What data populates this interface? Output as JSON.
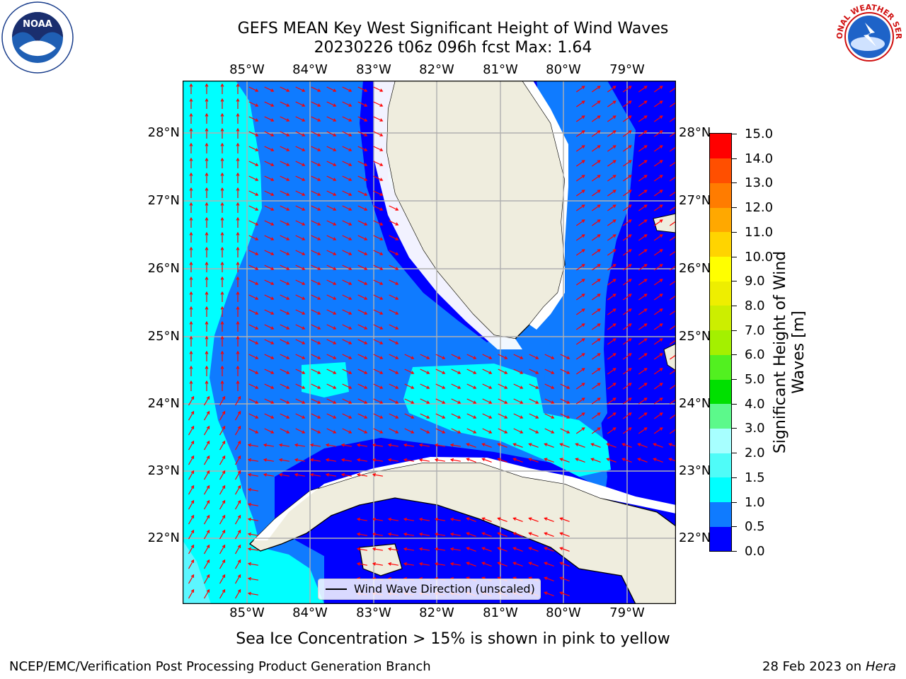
{
  "title": {
    "line1": "GEFS MEAN Key West Significant Height of Wind Waves",
    "line2": "20230226 t06z 096h fcst   Max: 1.64"
  },
  "map": {
    "lon_ticks": [
      "85°W",
      "84°W",
      "83°W",
      "82°W",
      "81°W",
      "80°W",
      "79°W"
    ],
    "lat_ticks": [
      "28°N",
      "27°N",
      "26°N",
      "25°N",
      "24°N",
      "23°N",
      "22°N"
    ],
    "legend_label": "Wind Wave Direction (unscaled)",
    "ocean_colors": {
      "deep": "#0000ff",
      "mid": "#0f7bff",
      "light": "#00ffff",
      "pale": "#5cf6ff"
    },
    "land_color": "#efedde",
    "arrow_color": "#ff0000"
  },
  "colorbar": {
    "label": "Significant Height of Wind Waves [m]",
    "ticks": [
      "0.0",
      "0.5",
      "1.0",
      "1.5",
      "2.0",
      "3.0",
      "4.0",
      "5.0",
      "6.0",
      "7.0",
      "8.0",
      "9.0",
      "10.0",
      "11.0",
      "12.0",
      "13.0",
      "14.0",
      "15.0"
    ],
    "colors": [
      "#0000ff",
      "#0f7bff",
      "#00ffff",
      "#4ffcf8",
      "#a7ffff",
      "#5cf98b",
      "#00e000",
      "#52f020",
      "#a4f000",
      "#ccee00",
      "#eeee00",
      "#ffff00",
      "#ffd400",
      "#ffa800",
      "#ff7c00",
      "#ff4f00",
      "#ff0000"
    ]
  },
  "logos": {
    "left": "NOAA",
    "right": "NATIONAL WEATHER SERVICE"
  },
  "footer": {
    "ice_note": "Sea Ice Concentration > 15% is shown in pink to yellow",
    "branch": "NCEP/EMC/Verification Post Processing Product Generation Branch",
    "date": "28 Feb 2023 on",
    "machine": "Hera"
  }
}
